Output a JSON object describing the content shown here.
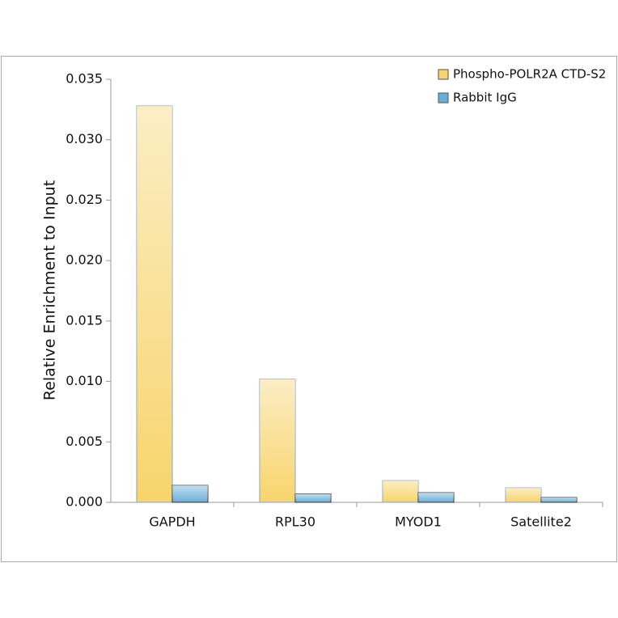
{
  "chart_data": {
    "type": "bar",
    "ylabel": "Relative Enrichment to Input",
    "categories": [
      "GAPDH",
      "RPL30",
      "MYOD1",
      "Satellite2"
    ],
    "series": [
      {
        "name": "Phospho-POLR2A CTD-S2",
        "color": "#f7d46c",
        "values": [
          0.0328,
          0.0102,
          0.0018,
          0.0012
        ]
      },
      {
        "name": "Rabbit IgG",
        "color": "#6aaed8",
        "values": [
          0.0014,
          0.0007,
          0.0008,
          0.0004
        ]
      }
    ],
    "ylim": [
      0,
      0.035
    ],
    "yticks": [
      {
        "value": 0,
        "label": "0.000"
      },
      {
        "value": 0.005,
        "label": "0.005"
      },
      {
        "value": 0.01,
        "label": "0.010"
      },
      {
        "value": 0.015,
        "label": "0.015"
      },
      {
        "value": 0.02,
        "label": "0.020"
      },
      {
        "value": 0.025,
        "label": "0.025"
      },
      {
        "value": 0.03,
        "label": "0.030"
      },
      {
        "value": 0.035,
        "label": "0.035"
      }
    ],
    "legend": "upper right"
  }
}
